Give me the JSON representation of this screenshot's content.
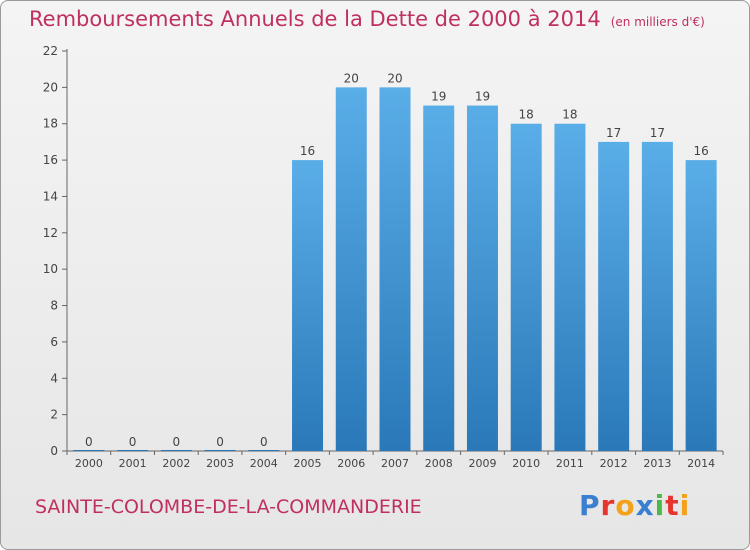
{
  "header": {
    "title": "Remboursements Annuels de la Dette de 2000 à 2014",
    "unit": "(en milliers d'€)"
  },
  "footer": {
    "commune": "SAINTE-COLOMBE-DE-LA-COMMANDERIE",
    "logo_letters": [
      {
        "char": "P",
        "color": "#3b7fd0"
      },
      {
        "char": "r",
        "color": "#e8342e"
      },
      {
        "char": "o",
        "color": "#f3a21a"
      },
      {
        "char": "x",
        "color": "#3b7fd0"
      },
      {
        "char": "i",
        "color": "#4cb848"
      },
      {
        "char": "t",
        "color": "#e8342e"
      },
      {
        "char": "i",
        "color": "#f3a21a"
      }
    ]
  },
  "chart_data": {
    "type": "bar",
    "categories": [
      "2000",
      "2001",
      "2002",
      "2003",
      "2004",
      "2005",
      "2006",
      "2007",
      "2008",
      "2009",
      "2010",
      "2011",
      "2012",
      "2013",
      "2014"
    ],
    "values": [
      0,
      0,
      0,
      0,
      0,
      16,
      20,
      20,
      19,
      19,
      18,
      18,
      17,
      17,
      16
    ],
    "ylim": [
      0,
      22
    ],
    "yticks": [
      0,
      2,
      4,
      6,
      8,
      10,
      12,
      14,
      16,
      18,
      20,
      22
    ],
    "grid": false,
    "bar_color_top": "#5aaee8",
    "bar_color_bottom": "#2a78b8"
  }
}
